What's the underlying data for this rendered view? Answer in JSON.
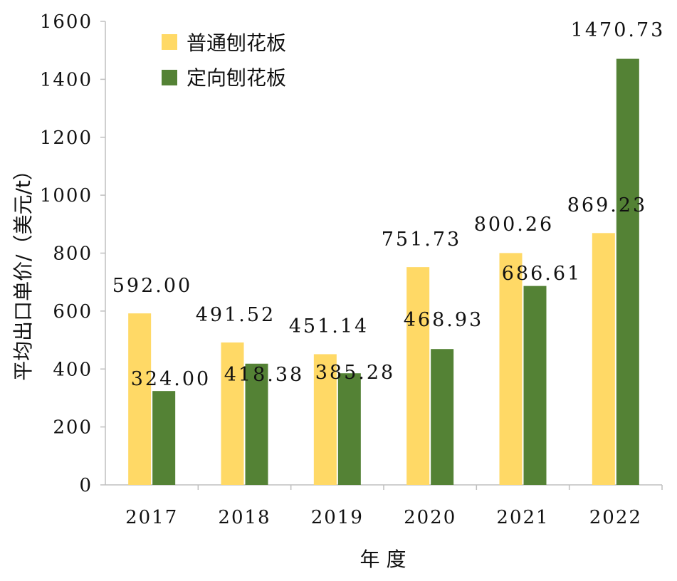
{
  "chart_data": {
    "type": "bar",
    "title": "",
    "xlabel": "年 度",
    "ylabel": "平均出口单价/（美元/t）",
    "ylim": [
      0,
      1600
    ],
    "yticks": [
      "0",
      "200",
      "400",
      "600",
      "800",
      "1000",
      "1200",
      "1400",
      "1600"
    ],
    "ytick_values": [
      0,
      200,
      400,
      600,
      800,
      1000,
      1200,
      1400,
      1600
    ],
    "categories": [
      "2017",
      "2018",
      "2019",
      "2020",
      "2021",
      "2022"
    ],
    "series": [
      {
        "name": "普通刨花板",
        "color": "#FFD966",
        "values": [
          592.0,
          491.52,
          451.14,
          751.73,
          800.26,
          869.23
        ],
        "labels": [
          "592.00",
          "491.52",
          "451.14",
          "751.73",
          "800.26",
          "869.23"
        ]
      },
      {
        "name": "定向刨花板",
        "color": "#548235",
        "values": [
          324.0,
          418.38,
          385.28,
          468.93,
          686.61,
          1470.73
        ],
        "labels": [
          "324.00",
          "418.38",
          "385.28",
          "468.93",
          "686.61",
          "1470.73"
        ]
      }
    ],
    "legend_position": "top-left",
    "grid": false
  }
}
